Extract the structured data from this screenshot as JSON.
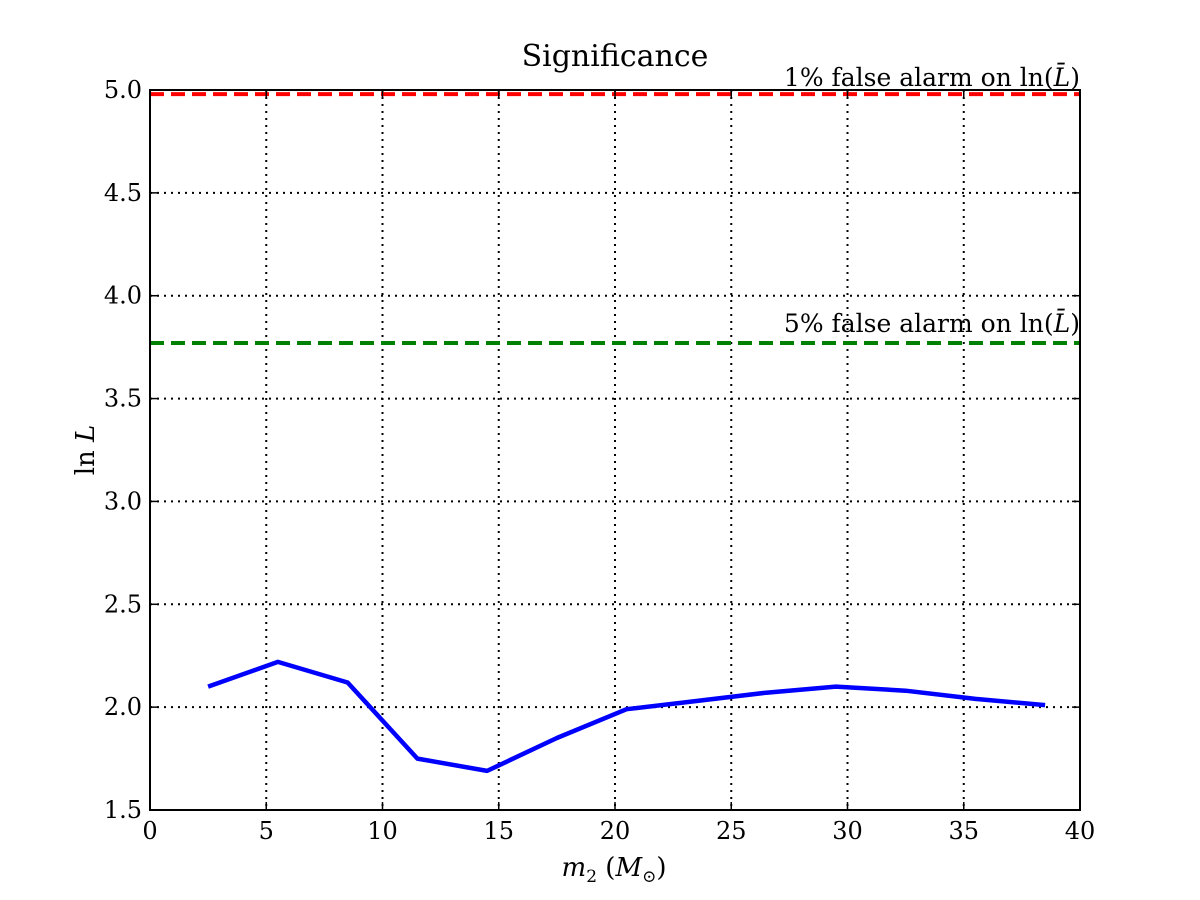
{
  "chart_data": {
    "type": "line",
    "title": "Significance",
    "xlabel_main": "m",
    "xlabel_sub": "2",
    "xlabel_unit": "M",
    "xlabel_unit_sub": "⊙",
    "ylabel_fn": "ln",
    "ylabel_var": "L",
    "xlim": [
      0,
      40
    ],
    "ylim": [
      1.5,
      5.0
    ],
    "x_ticks": [
      0,
      5,
      10,
      15,
      20,
      25,
      30,
      35,
      40
    ],
    "y_ticks": [
      1.5,
      2.0,
      2.5,
      3.0,
      3.5,
      4.0,
      4.5,
      5.0
    ],
    "x_tick_labels": [
      "0",
      "5",
      "10",
      "15",
      "20",
      "25",
      "30",
      "35",
      "40"
    ],
    "y_tick_labels": [
      "1.5",
      "2.0",
      "2.5",
      "3.0",
      "3.5",
      "4.0",
      "4.5",
      "5.0"
    ],
    "grid": true,
    "series": [
      {
        "color": "#0000ff",
        "x": [
          2.5,
          5.5,
          8.5,
          11.5,
          14.5,
          17.5,
          20.5,
          23.5,
          26.5,
          29.5,
          32.5,
          35.5,
          38.5
        ],
        "y": [
          2.1,
          2.22,
          2.12,
          1.75,
          1.69,
          1.85,
          1.99,
          2.03,
          2.07,
          2.1,
          2.08,
          2.04,
          2.01
        ]
      }
    ],
    "thresholds": [
      {
        "value": 4.98,
        "color": "#ff0000",
        "label_pct": "1% false alarm on ",
        "label_fn": "ln(",
        "label_var": "L̄",
        "label_close": ")"
      },
      {
        "value": 3.77,
        "color": "#008000",
        "label_pct": "5% false alarm on ",
        "label_fn": "ln(",
        "label_var": "L̄",
        "label_close": ")"
      }
    ]
  }
}
